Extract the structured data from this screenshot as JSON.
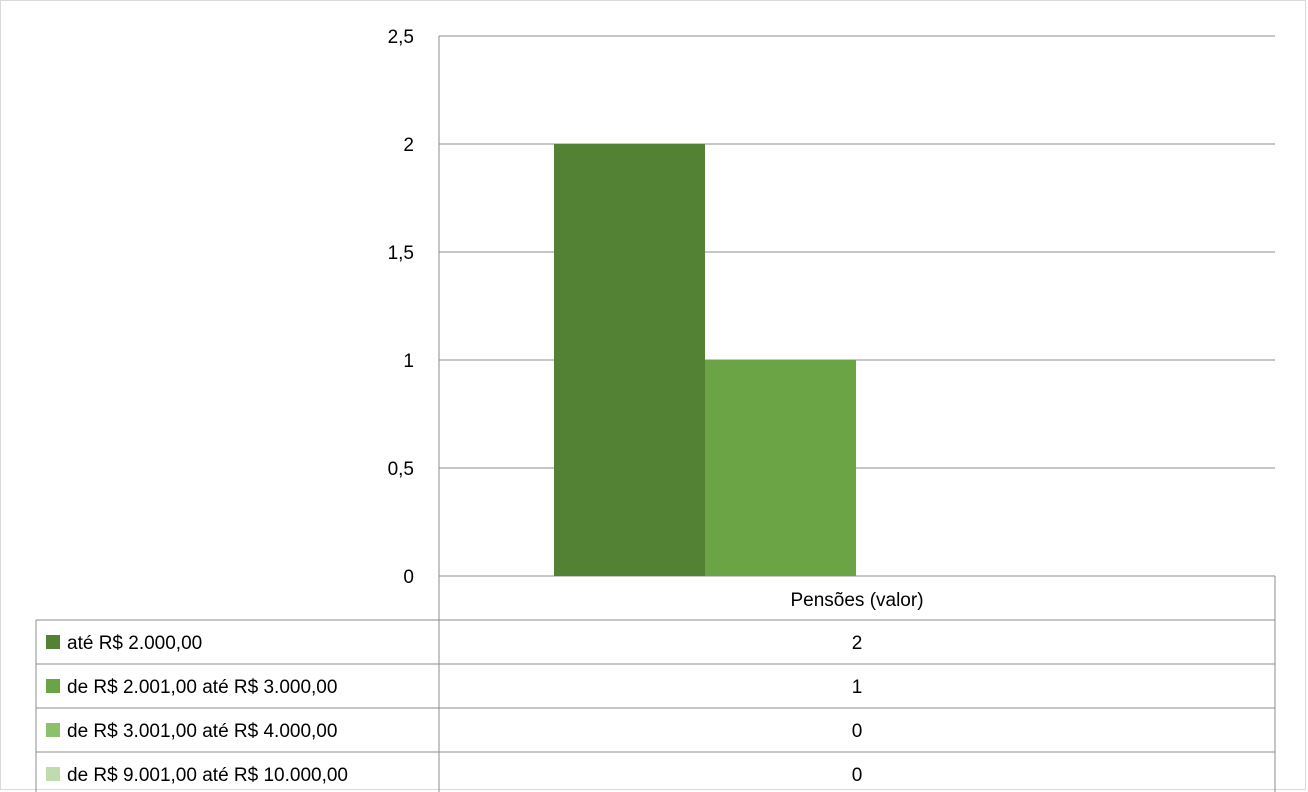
{
  "chart_data": {
    "type": "bar",
    "categories": [
      "Pensões (valor)"
    ],
    "series": [
      {
        "name": "até R$ 2.000,00",
        "values": [
          2
        ],
        "color": "#548235"
      },
      {
        "name": "de R$ 2.001,00 até R$ 3.000,00",
        "values": [
          1
        ],
        "color": "#6aa444"
      },
      {
        "name": "de R$ 3.001,00 até R$ 4.000,00",
        "values": [
          0
        ],
        "color": "#8cc06c"
      },
      {
        "name": "de R$ 9.001,00 até R$ 10.000,00",
        "values": [
          0
        ],
        "color": "#bfdcad"
      }
    ],
    "yticks": [
      "0",
      "0,5",
      "1",
      "1,5",
      "2",
      "2,5"
    ],
    "ylim": [
      0,
      2.5
    ],
    "grid": true,
    "legend": "data table below chart",
    "data_table": {
      "header": "Pensões (valor)",
      "rows": [
        {
          "label": "até R$ 2.000,00",
          "value": "2"
        },
        {
          "label": "de R$ 2.001,00 até R$ 3.000,00",
          "value": "1"
        },
        {
          "label": "de R$ 3.001,00 até R$ 4.000,00",
          "value": "0"
        },
        {
          "label": "de R$ 9.001,00 até R$ 10.000,00",
          "value": "0"
        }
      ]
    }
  }
}
